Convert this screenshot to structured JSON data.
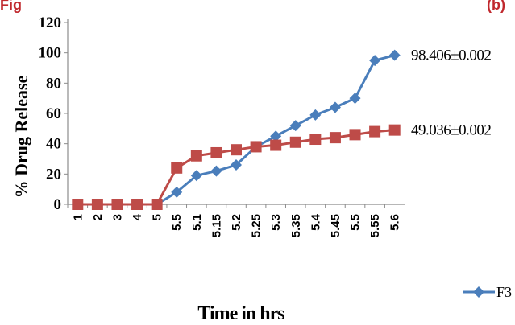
{
  "chart_data": {
    "type": "line",
    "title": "Fig",
    "title_suffix": "(b)",
    "xlabel": "Time in hrs",
    "ylabel": "% Drug Release",
    "categories": [
      "1",
      "2",
      "3",
      "4",
      "5",
      "5.5",
      "5.1",
      "5.15",
      "5.2",
      "5.25",
      "5.3",
      "5.35",
      "5.4",
      "5.45",
      "5.5",
      "5.55",
      "5.6"
    ],
    "ylim": [
      0,
      120
    ],
    "yticks": [
      0,
      20,
      40,
      60,
      80,
      100,
      120
    ],
    "grid": false,
    "legend_position": "bottom-right",
    "series": [
      {
        "name": "F3",
        "marker": "diamond",
        "color": "#4a7ebb",
        "values": [
          0,
          0,
          0,
          0,
          0,
          8,
          19,
          22,
          26,
          38,
          45,
          52,
          59,
          64,
          70,
          95,
          98.406
        ],
        "end_label": "98.406±0.002"
      },
      {
        "name": "",
        "marker": "square",
        "color": "#be4b48",
        "values": [
          0,
          0,
          0,
          0,
          0,
          24,
          32,
          34,
          36,
          38,
          39,
          41,
          43,
          44,
          46,
          48,
          49.036
        ],
        "end_label": "49.036±0.002"
      }
    ]
  }
}
